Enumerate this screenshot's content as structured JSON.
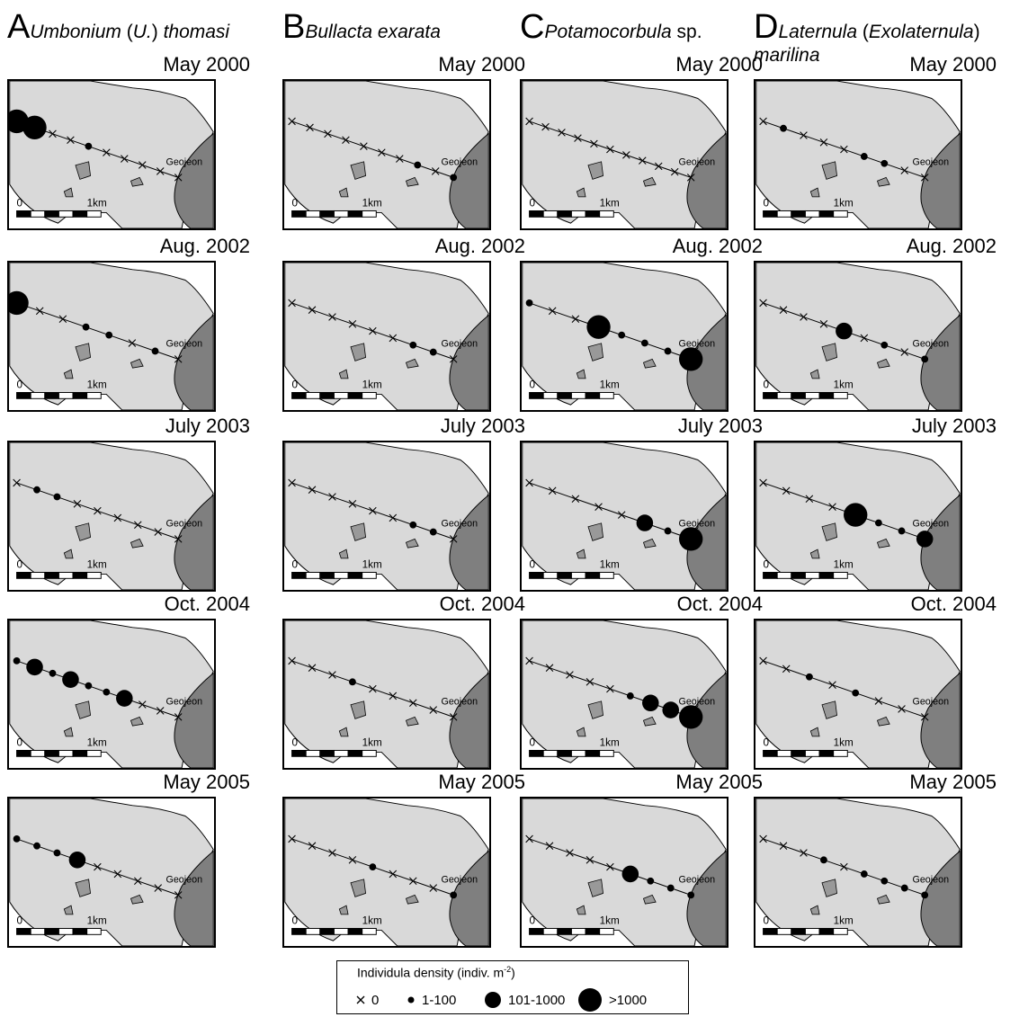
{
  "columns": [
    {
      "letter": "A",
      "title_parts": [
        {
          "t": "Umbonium",
          "i": true
        },
        {
          "t": " (",
          "i": false
        },
        {
          "t": "U.",
          "i": true
        },
        {
          "t": ") ",
          "i": false
        },
        {
          "t": "thomasi",
          "i": true
        }
      ],
      "title_line2": ""
    },
    {
      "letter": "B",
      "title_parts": [
        {
          "t": "Bullacta exarata",
          "i": true
        }
      ],
      "title_line2": ""
    },
    {
      "letter": "C",
      "title_parts": [
        {
          "t": "Potamocorbula",
          "i": true
        },
        {
          "t": " sp.",
          "i": false
        }
      ],
      "title_line2": ""
    },
    {
      "letter": "D",
      "title_parts": [
        {
          "t": "Laternula",
          "i": true
        },
        {
          "t": " (",
          "i": false
        },
        {
          "t": "Exolaternula",
          "i": true
        },
        {
          "t": ")",
          "i": false
        }
      ],
      "title_line2": "marilina"
    }
  ],
  "survey_dates": [
    "May 2000",
    "Aug. 2002",
    "July 2003",
    "Oct. 2004",
    "May 2005"
  ],
  "map": {
    "town_label": "Geojeon",
    "scale_zero": "0",
    "scale_length": "1km",
    "colors": {
      "tidal_flat": "#d9d9d9",
      "land": "#7f7f7f",
      "islet": "#999999",
      "outline": "#000000"
    }
  },
  "stations_note": "each panel shows the transect stations, density class per station in order along the transect",
  "density_classes": {
    "0": "x",
    "1": "1-100",
    "2": "101-1000",
    "3": ">1000"
  },
  "density_grid": [
    [
      [
        3,
        3,
        0,
        0,
        1,
        0,
        0,
        0,
        0,
        0
      ],
      [
        0,
        0,
        0,
        0,
        0,
        0,
        0,
        1,
        0,
        1
      ],
      [
        0,
        0,
        0,
        0,
        0,
        0,
        0,
        0,
        0,
        0,
        0
      ],
      [
        0,
        1,
        0,
        0,
        0,
        1,
        1,
        0,
        0
      ]
    ],
    [
      [
        3,
        0,
        0,
        1,
        1,
        0,
        1,
        0
      ],
      [
        0,
        0,
        0,
        0,
        0,
        0,
        1,
        1,
        0
      ],
      [
        1,
        0,
        0,
        3,
        1,
        1,
        1,
        3
      ],
      [
        0,
        0,
        0,
        0,
        2,
        0,
        1,
        0,
        1
      ]
    ],
    [
      [
        0,
        1,
        1,
        0,
        0,
        0,
        0,
        0,
        0
      ],
      [
        0,
        0,
        0,
        0,
        0,
        0,
        1,
        1,
        0
      ],
      [
        0,
        0,
        0,
        0,
        0,
        2,
        1,
        3
      ],
      [
        0,
        0,
        0,
        0,
        3,
        1,
        1,
        2
      ]
    ],
    [
      [
        1,
        2,
        1,
        2,
        1,
        1,
        2,
        0,
        0,
        0
      ],
      [
        0,
        0,
        0,
        1,
        0,
        0,
        0,
        0,
        0
      ],
      [
        0,
        0,
        0,
        0,
        0,
        1,
        2,
        2,
        3
      ],
      [
        0,
        0,
        1,
        0,
        1,
        0,
        0,
        0
      ]
    ],
    [
      [
        1,
        1,
        1,
        2,
        0,
        0,
        0,
        0,
        0
      ],
      [
        0,
        0,
        0,
        0,
        1,
        0,
        0,
        0,
        1
      ],
      [
        0,
        0,
        0,
        0,
        0,
        2,
        1,
        1,
        1
      ],
      [
        0,
        0,
        0,
        1,
        0,
        1,
        1,
        1,
        1
      ]
    ]
  ],
  "legend": {
    "title": "Individula density (indiv. m",
    "title_exp": "-2",
    "title_close": ")",
    "items": [
      {
        "symbol": "x",
        "label": "0"
      },
      {
        "symbol": "small-dot",
        "label": "1-100"
      },
      {
        "symbol": "medium-dot",
        "label": "101-1000"
      },
      {
        "symbol": "large-dot",
        "label": ">1000"
      }
    ]
  }
}
